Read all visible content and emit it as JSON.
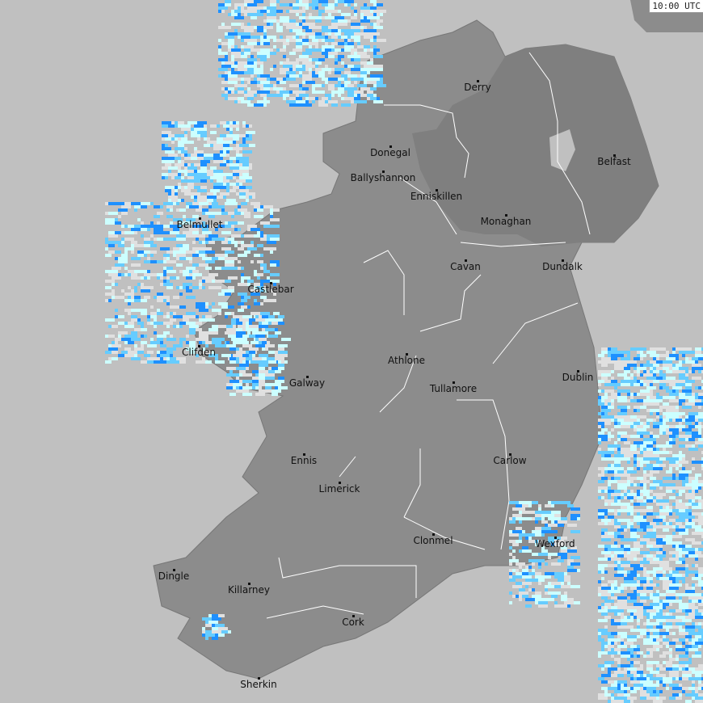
{
  "timestamp": "10:00 UTC",
  "colors": {
    "sea": "#c0c0c0",
    "land": "#8c8c8c",
    "northern_ireland": "#7f7f7f",
    "rain_light": "#ccffff",
    "rain_medium": "#66ccff",
    "rain_heavy": "#1e90ff",
    "rivers": "#ffffff"
  },
  "cities": [
    "Derry",
    "Donegal",
    "Ballyshannon",
    "Enniskillen",
    "Belfast",
    "Monaghan",
    "Belmullet",
    "Cavan",
    "Dundalk",
    "Castlebar",
    "Clifden",
    "Athlone",
    "Galway",
    "Tullamore",
    "Dublin",
    "Ennis",
    "Carlow",
    "Limerick",
    "Clonmel",
    "Wexford",
    "Dingle",
    "Killarney",
    "Cork",
    "Sherkin"
  ]
}
